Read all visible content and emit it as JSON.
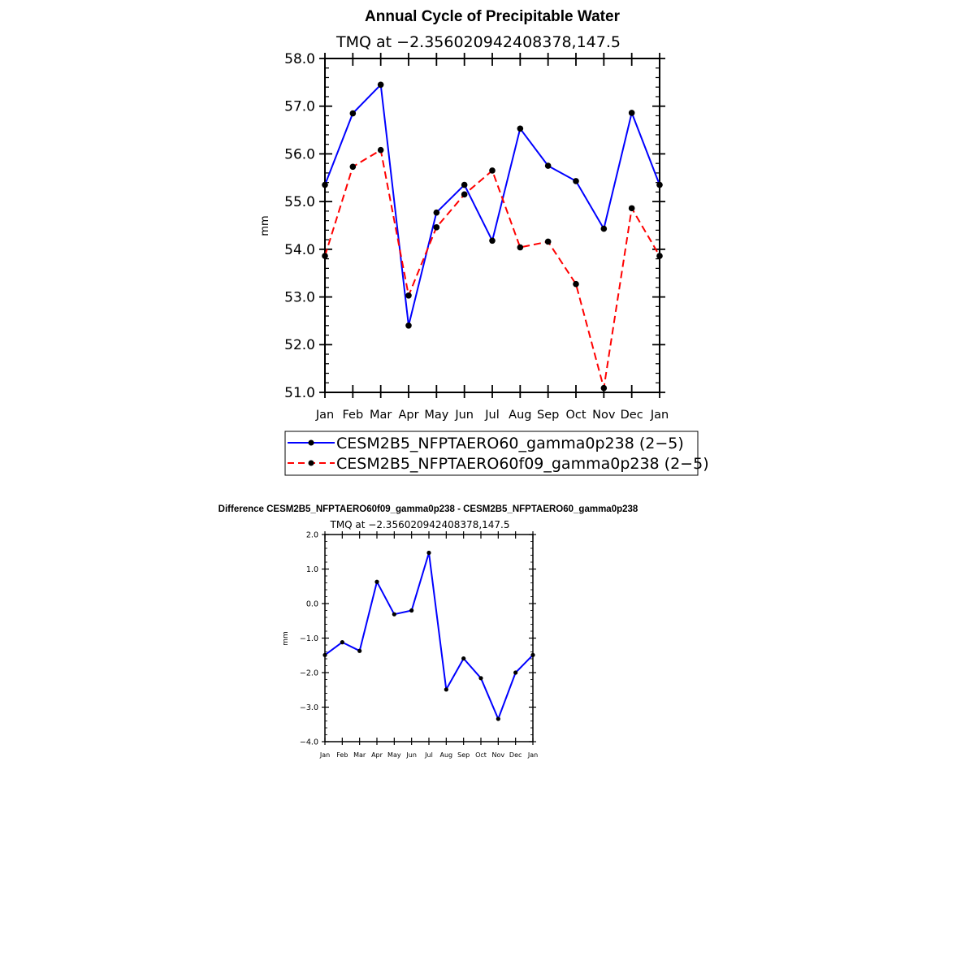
{
  "chart_data": [
    {
      "type": "line",
      "title": "Annual Cycle of Precipitable Water",
      "subtitle": "TMQ at −2.356020942408378,147.5",
      "ylabel": "mm",
      "ylim": [
        51.0,
        58.0
      ],
      "yticks": [
        "51.0",
        "52.0",
        "53.0",
        "54.0",
        "55.0",
        "56.0",
        "57.0",
        "58.0"
      ],
      "categories": [
        "Jan",
        "Feb",
        "Mar",
        "Apr",
        "May",
        "Jun",
        "Jul",
        "Aug",
        "Sep",
        "Oct",
        "Nov",
        "Dec",
        "Jan"
      ],
      "legend_position": "below",
      "series": [
        {
          "name": "CESM2B5_NFPTAERO60_gamma0p238 (2−5)",
          "color": "#0000ff",
          "dash": "solid",
          "values": [
            55.35,
            56.85,
            57.45,
            52.4,
            54.77,
            55.35,
            54.18,
            56.53,
            55.75,
            55.43,
            54.43,
            56.86,
            55.35
          ]
        },
        {
          "name": "CESM2B5_NFPTAERO60f09_gamma0p238 (2−5)",
          "color": "#ff0000",
          "dash": "dashed",
          "values": [
            53.86,
            55.73,
            56.08,
            53.03,
            54.46,
            55.15,
            55.65,
            54.04,
            54.16,
            53.27,
            51.09,
            54.86,
            53.86
          ]
        }
      ]
    },
    {
      "type": "line",
      "title": "Difference CESM2B5_NFPTAERO60f09_gamma0p238 - CESM2B5_NFPTAERO60_gamma0p238",
      "subtitle": "TMQ at −2.356020942408378,147.5",
      "ylabel": "mm",
      "ylim": [
        -4.0,
        2.0
      ],
      "yticks": [
        "−4.0",
        "−3.0",
        "−2.0",
        "−1.0",
        "0.0",
        "1.0",
        "2.0"
      ],
      "categories": [
        "Jan",
        "Feb",
        "Mar",
        "Apr",
        "May",
        "Jun",
        "Jul",
        "Aug",
        "Sep",
        "Oct",
        "Nov",
        "Dec",
        "Jan"
      ],
      "series": [
        {
          "color": "#0000ff",
          "values": [
            -1.49,
            -1.12,
            -1.37,
            0.63,
            -0.31,
            -0.2,
            1.47,
            -2.49,
            -1.59,
            -2.16,
            -3.34,
            -2.0,
            -1.49
          ]
        }
      ]
    }
  ]
}
